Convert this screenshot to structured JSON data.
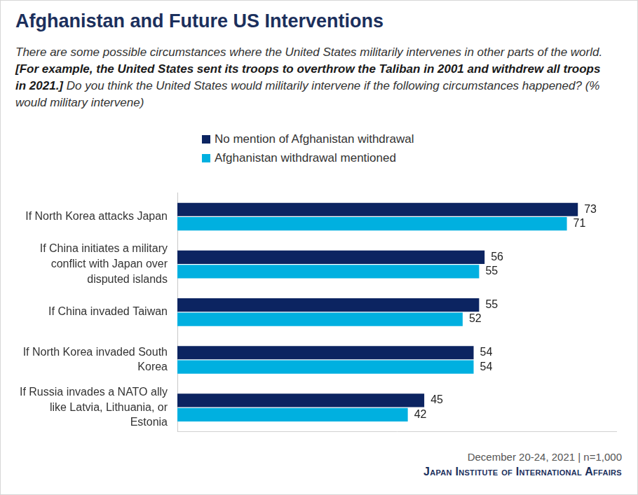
{
  "chart_data": {
    "type": "bar",
    "orientation": "horizontal",
    "title": "Afghanistan and Future US Interventions",
    "subtitle": "There are some possible circumstances where the United States militarily intervenes in other parts of the world. [For example, the United States sent its troops to overthrow the Taliban in 2001 and withdrew all troops in 2021.] Do you think the United States would militarily intervene if the following circumstances happened? (% would military intervene)",
    "subtitle_bold": "[For example, the United States sent its troops to overthrow the Taliban in 2001 and withdrew all troops in 2021.]",
    "categories": [
      "If North Korea attacks Japan",
      "If China initiates a military conflict with Japan over disputed islands",
      "If China invaded Taiwan",
      "If North Korea invaded South Korea",
      "If Russia invades a NATO ally like Latvia, Lithuania, or Estonia"
    ],
    "series": [
      {
        "name": "No mention of Afghanistan withdrawal",
        "color": "#0c2461",
        "values": [
          73,
          56,
          55,
          54,
          45
        ]
      },
      {
        "name": "Afghanistan withdrawal mentioned",
        "color": "#00b0e0",
        "values": [
          71,
          55,
          52,
          54,
          42
        ]
      }
    ],
    "xlim": [
      0,
      80
    ],
    "grid": false,
    "legend": "top",
    "data_labels": true,
    "tick_labels": "y",
    "annotations": [
      "December 20-24, 2021 | n=1,000",
      "Japan Institute of International Affairs"
    ]
  }
}
